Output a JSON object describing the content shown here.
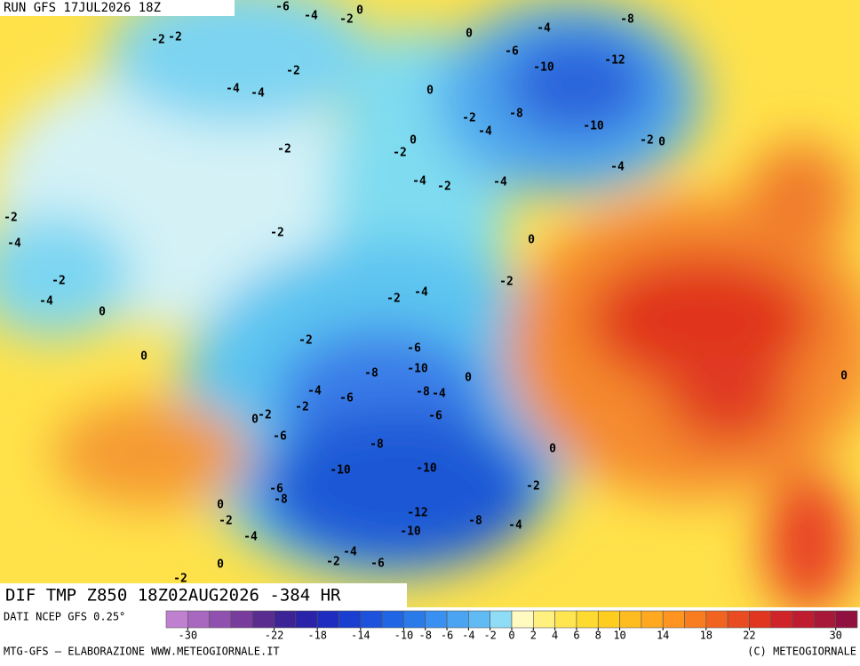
{
  "header": {
    "run": "RUN GFS 17JUL2026 18Z"
  },
  "map": {
    "title": "DIF TMP Z850 18Z02AUG2026 -384 HR",
    "contour_labels": [
      -2,
      -2,
      -6,
      -4,
      -2,
      0,
      0,
      -4,
      -8,
      -6,
      -10,
      -12,
      -2,
      -4,
      -4,
      0,
      -2,
      -8,
      -10,
      -4,
      -2,
      0,
      -2,
      0,
      -2,
      -4,
      -4,
      -2,
      -4,
      -2,
      -4,
      -2,
      0,
      -2,
      -2,
      -4,
      -2,
      -4,
      0,
      -2,
      -6,
      0,
      -8,
      -10,
      0,
      -4,
      -8,
      -4,
      -6,
      0,
      -2,
      -2,
      0,
      -6,
      -6,
      -8,
      0,
      -10,
      -10,
      -2,
      -6,
      -8,
      0,
      -12,
      -2,
      -8,
      -4,
      -10,
      -4,
      -4,
      -2,
      -6,
      0,
      -2
    ]
  },
  "colorbar": {
    "source": "DATI NCEP GFS 0.25°",
    "range": [
      -32,
      32
    ],
    "colors": [
      "#c080d0",
      "#a868c0",
      "#9050b0",
      "#783c9c",
      "#5a2c90",
      "#3c2496",
      "#2a22a8",
      "#1e2cc0",
      "#1a3ed0",
      "#1c52dc",
      "#2066e4",
      "#2a7aea",
      "#3a90f0",
      "#4aa4f2",
      "#60baf4",
      "#8fdcf6",
      "#fffac0",
      "#fff080",
      "#ffe650",
      "#ffda30",
      "#ffcc20",
      "#ffbc20",
      "#ffa820",
      "#ff9420",
      "#f87c20",
      "#f06420",
      "#e84c20",
      "#e03620",
      "#d02428",
      "#c01c30",
      "#a81838",
      "#901040"
    ],
    "ticks": [
      -30,
      -22,
      -18,
      -14,
      -10,
      -8,
      -6,
      -4,
      -2,
      0,
      2,
      4,
      6,
      8,
      10,
      14,
      18,
      22,
      30
    ]
  },
  "footer": {
    "credit": "MTG-GFS — ELABORAZIONE WWW.METEOGIORNALE.IT",
    "copyright": "(C) METEOGIORNALE"
  }
}
